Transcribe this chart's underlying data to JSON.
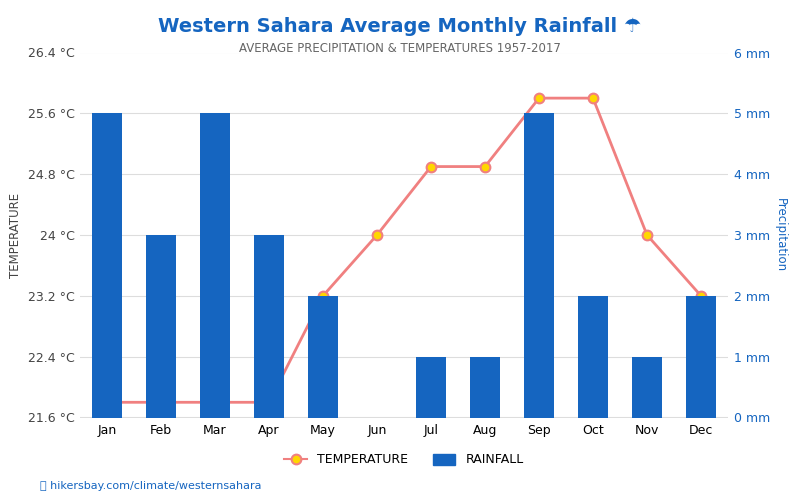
{
  "title": "Western Sahara Average Monthly Rainfall ☂",
  "subtitle": "AVERAGE PRECIPITATION & TEMPERATURES 1957-2017",
  "months": [
    "Jan",
    "Feb",
    "Mar",
    "Apr",
    "May",
    "Jun",
    "Jul",
    "Aug",
    "Sep",
    "Oct",
    "Nov",
    "Dec"
  ],
  "temperature": [
    21.8,
    21.8,
    21.8,
    21.8,
    23.2,
    24.0,
    24.9,
    24.9,
    25.8,
    25.8,
    24.0,
    23.2
  ],
  "rainfall": [
    5,
    3,
    5,
    3,
    2,
    0,
    1,
    1,
    5,
    2,
    1,
    2
  ],
  "bar_color": "#1565c0",
  "line_color": "#f08080",
  "marker_face_color": "#ffd700",
  "marker_edge_color": "#f08080",
  "title_color": "#1565c0",
  "subtitle_color": "#666666",
  "temp_axis_color": "#444444",
  "precip_axis_color": "#1565c0",
  "left_label": "TEMPERATURE",
  "right_label": "Precipitation",
  "legend_temp_label": "TEMPERATURE",
  "legend_rain_label": "RAINFALL",
  "ylim_temp": [
    21.6,
    26.4
  ],
  "ylim_rain": [
    0,
    6
  ],
  "yticks_temp": [
    21.6,
    22.4,
    23.2,
    24.0,
    24.8,
    25.6,
    26.4
  ],
  "yticks_rain": [
    0,
    1,
    2,
    3,
    4,
    5,
    6
  ],
  "ytick_labels_temp": [
    "21.6 °C",
    "22.4 °C",
    "23.2 °C",
    "24 °C",
    "24.8 °C",
    "25.6 °C",
    "26.4 °C"
  ],
  "ytick_labels_rain": [
    "0 mm",
    "1 mm",
    "2 mm",
    "3 mm",
    "4 mm",
    "5 mm",
    "6 mm"
  ],
  "footer_text": "hikersbay.com/climate/westernsahara",
  "footer_color": "#1565c0",
  "background_color": "#ffffff",
  "grid_color": "#dddddd",
  "title_fontsize": 14,
  "subtitle_fontsize": 8.5,
  "tick_fontsize": 9,
  "bar_width": 0.55
}
